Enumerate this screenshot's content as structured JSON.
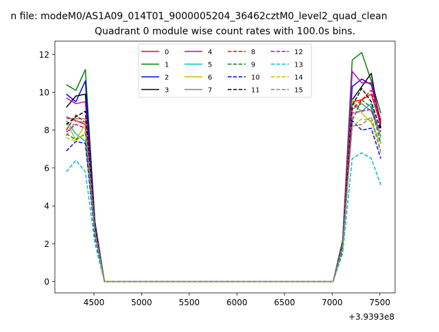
{
  "chart_data": {
    "type": "line",
    "title_line1": "n file: modeM0/AS1A09_014T01_9000005204_36462cztM0_level2_quad_clean",
    "title_line2": "Quadrant 0 module wise count rates with 100.0s bins.",
    "xlabel": "",
    "ylabel": "",
    "x_offset_text": "+3.9393e8",
    "xlim": [
      4090,
      7660
    ],
    "ylim": [
      -0.6,
      12.7
    ],
    "x_ticks": [
      4500,
      5000,
      5500,
      6000,
      6500,
      7000,
      7500
    ],
    "y_ticks": [
      0,
      2,
      4,
      6,
      8,
      10,
      12
    ],
    "grid": false,
    "legend_position": "upper-center",
    "x": [
      4210,
      4310,
      4410,
      4510,
      4610,
      4710,
      4810,
      4910,
      5010,
      5110,
      5210,
      5310,
      5410,
      5510,
      5610,
      5710,
      5810,
      5910,
      6010,
      6110,
      6210,
      6310,
      6410,
      6510,
      6610,
      6710,
      6810,
      6910,
      7010,
      7110,
      7210,
      7310,
      7410,
      7510
    ],
    "series": [
      {
        "name": "0",
        "color": "#ff0000",
        "dash": "solid",
        "start": [
          8.7,
          8.5,
          8.3,
          3.0
        ],
        "end": [
          2.0,
          9.5,
          9.6,
          9.9,
          8.3
        ]
      },
      {
        "name": "1",
        "color": "#008000",
        "dash": "solid",
        "start": [
          10.4,
          10.1,
          11.2,
          3.2
        ],
        "end": [
          2.2,
          11.7,
          12.1,
          10.6,
          8.9
        ]
      },
      {
        "name": "2",
        "color": "#0000ff",
        "dash": "solid",
        "start": [
          9.9,
          9.5,
          10.6,
          3.1
        ],
        "end": [
          2.1,
          10.3,
          10.7,
          10.4,
          8.4
        ]
      },
      {
        "name": "3",
        "color": "#000000",
        "dash": "solid",
        "start": [
          9.2,
          9.8,
          9.9,
          3.0
        ],
        "end": [
          2.0,
          9.6,
          10.3,
          11.0,
          8.1
        ]
      },
      {
        "name": "4",
        "color": "#bf00bf",
        "dash": "solid",
        "start": [
          9.7,
          9.4,
          9.5,
          3.0
        ],
        "end": [
          2.1,
          11.1,
          10.5,
          10.5,
          8.5
        ]
      },
      {
        "name": "5",
        "color": "#00bfbf",
        "dash": "solid",
        "start": [
          8.5,
          7.8,
          7.4,
          2.6
        ],
        "end": [
          1.8,
          9.4,
          9.0,
          9.4,
          7.6
        ]
      },
      {
        "name": "6",
        "color": "#bfbf00",
        "dash": "solid",
        "start": [
          8.4,
          7.5,
          8.3,
          2.7
        ],
        "end": [
          1.9,
          9.6,
          8.9,
          8.4,
          7.3
        ]
      },
      {
        "name": "7",
        "color": "#808080",
        "dash": "solid",
        "start": [
          8.6,
          8.6,
          8.6,
          2.8
        ],
        "end": [
          2.0,
          9.1,
          9.4,
          9.0,
          7.7
        ]
      },
      {
        "name": "8",
        "color": "#ff0000",
        "dash": "dashed",
        "start": [
          8.0,
          8.8,
          8.4,
          2.8
        ],
        "end": [
          1.9,
          9.1,
          9.6,
          10.1,
          8.3
        ]
      },
      {
        "name": "9",
        "color": "#008000",
        "dash": "dashed",
        "start": [
          7.8,
          7.5,
          7.8,
          2.6
        ],
        "end": [
          1.8,
          8.5,
          9.6,
          9.2,
          7.3
        ]
      },
      {
        "name": "10",
        "color": "#0000ff",
        "dash": "dashed",
        "start": [
          6.9,
          7.4,
          7.3,
          2.4
        ],
        "end": [
          1.6,
          8.5,
          8.0,
          8.1,
          6.5
        ]
      },
      {
        "name": "11",
        "color": "#000000",
        "dash": "dashed",
        "start": [
          8.3,
          8.7,
          9.0,
          2.9
        ],
        "end": [
          2.0,
          9.3,
          10.2,
          9.5,
          8.0
        ]
      },
      {
        "name": "12",
        "color": "#bf00bf",
        "dash": "dashed",
        "start": [
          7.9,
          8.3,
          8.1,
          2.7
        ],
        "end": [
          1.9,
          8.9,
          9.0,
          9.1,
          7.9
        ]
      },
      {
        "name": "13",
        "color": "#00bfbf",
        "dash": "dashed",
        "start": [
          5.8,
          6.4,
          5.8,
          2.0
        ],
        "end": [
          1.5,
          6.5,
          6.8,
          6.5,
          5.1
        ]
      },
      {
        "name": "14",
        "color": "#bfbf00",
        "dash": "dashed",
        "start": [
          7.6,
          7.4,
          7.9,
          2.6
        ],
        "end": [
          1.8,
          8.2,
          8.6,
          8.5,
          6.8
        ]
      },
      {
        "name": "15",
        "color": "#808080",
        "dash": "dashed",
        "start": [
          7.7,
          8.5,
          8.4,
          2.7
        ],
        "end": [
          1.9,
          8.2,
          8.3,
          8.7,
          6.9
        ]
      }
    ]
  }
}
